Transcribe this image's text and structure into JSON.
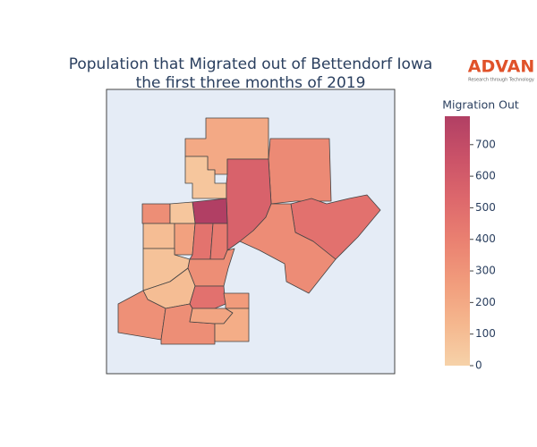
{
  "chart_data": {
    "type": "choropleth",
    "title": [
      "Population that Migrated out of Bettendorf Iowa",
      "the first three months of 2019"
    ],
    "logo": {
      "name": "ADVAN",
      "tagline": "Research through Technology",
      "color": "#e0522a"
    },
    "colorbar_title": "Migration Out",
    "colorscale": [
      "#f6d2a9",
      "#f5b78e",
      "#f19c7c",
      "#ea8171",
      "#dd686c",
      "#ca5268",
      "#b13f64"
    ],
    "zlim": [
      0,
      790
    ],
    "zticks": [
      0,
      100,
      200,
      300,
      400,
      500,
      600,
      700
    ],
    "values": [
      200,
      60,
      350,
      560,
      790,
      480,
      340,
      330,
      60,
      100,
      240,
      470,
      430,
      80,
      330,
      100,
      480,
      270,
      320,
      330,
      220,
      180
    ]
  }
}
